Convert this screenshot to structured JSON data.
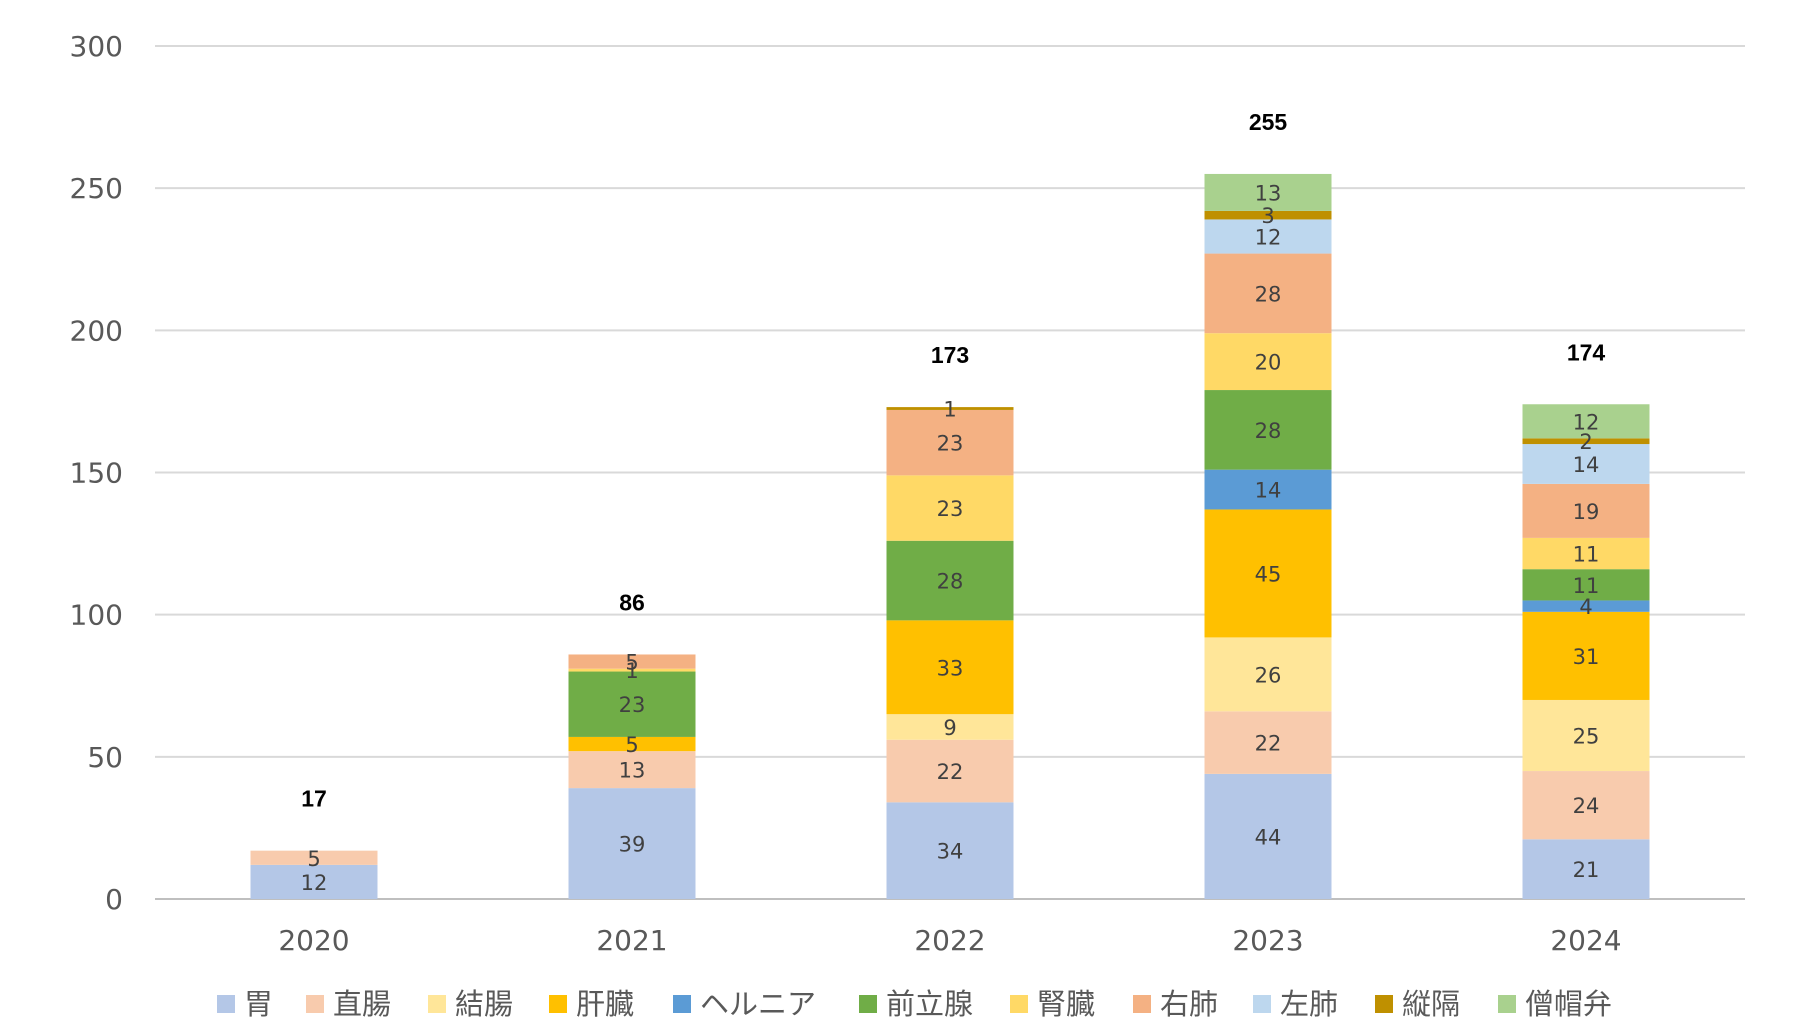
{
  "chart_data": {
    "type": "bar",
    "stacked": true,
    "title": "",
    "xlabel": "",
    "ylabel": "",
    "ylim": [
      0,
      300
    ],
    "yticks": [
      0,
      50,
      100,
      150,
      200,
      250,
      300
    ],
    "grid": true,
    "legend_position": "bottom",
    "categories": [
      "2020",
      "2021",
      "2022",
      "2023",
      "2024"
    ],
    "totals": [
      17,
      86,
      173,
      255,
      174
    ],
    "series": [
      {
        "name": "胃",
        "color": "#B4C7E7",
        "values": [
          12,
          39,
          34,
          44,
          21
        ]
      },
      {
        "name": "直腸",
        "color": "#F8CBAD",
        "values": [
          5,
          13,
          22,
          22,
          24
        ]
      },
      {
        "name": "結腸",
        "color": "#FFE699",
        "values": [
          0,
          0,
          9,
          26,
          25
        ]
      },
      {
        "name": "肝臓",
        "color": "#FFC000",
        "values": [
          0,
          5,
          33,
          45,
          31
        ]
      },
      {
        "name": "ヘルニア",
        "color": "#5B9BD5",
        "values": [
          0,
          0,
          0,
          14,
          4
        ]
      },
      {
        "name": "前立腺",
        "color": "#70AD47",
        "values": [
          0,
          23,
          28,
          28,
          11
        ]
      },
      {
        "name": "腎臓",
        "color": "#FFD966",
        "values": [
          0,
          1,
          23,
          20,
          11
        ]
      },
      {
        "name": "右肺",
        "color": "#F4B183",
        "values": [
          0,
          5,
          23,
          28,
          19
        ]
      },
      {
        "name": "左肺",
        "color": "#BDD7EE",
        "values": [
          0,
          0,
          0,
          12,
          14
        ]
      },
      {
        "name": "縦隔",
        "color": "#BF9000",
        "values": [
          0,
          0,
          1,
          3,
          2
        ]
      },
      {
        "name": "僧帽弁",
        "color": "#A9D18E",
        "values": [
          0,
          0,
          0,
          13,
          12
        ]
      }
    ]
  }
}
